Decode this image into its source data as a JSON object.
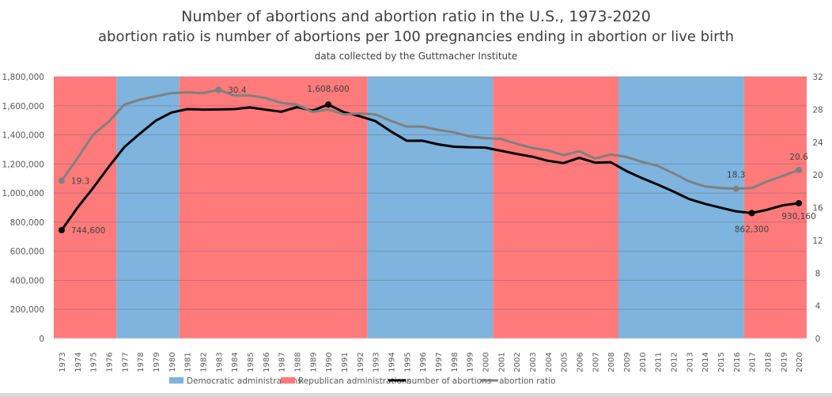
{
  "chart_data": {
    "type": "line",
    "title": "Number of abortions and abortion ratio in the U.S., 1973-2020",
    "subtitle": "abortion ratio is number of abortions per 100 pregnancies ending in abortion or live birth",
    "source_note": "data collected by the Guttmacher Institute",
    "x": [
      1973,
      1974,
      1975,
      1976,
      1977,
      1978,
      1979,
      1980,
      1981,
      1982,
      1983,
      1984,
      1985,
      1986,
      1987,
      1988,
      1989,
      1990,
      1991,
      1992,
      1993,
      1994,
      1995,
      1996,
      1997,
      1998,
      1999,
      2000,
      2001,
      2002,
      2003,
      2004,
      2005,
      2006,
      2007,
      2008,
      2009,
      2010,
      2011,
      2012,
      2013,
      2014,
      2015,
      2016,
      2017,
      2018,
      2019,
      2020
    ],
    "y_left": {
      "range": [
        0,
        1800000
      ],
      "ticks": [
        "0",
        "200,000",
        "400,000",
        "600,000",
        "800,000",
        "1,000,000",
        "1,200,000",
        "1,400,000",
        "1,600,000",
        "1,800,000"
      ]
    },
    "y_right": {
      "range": [
        0,
        32
      ],
      "ticks": [
        "0",
        "4",
        "8",
        "12",
        "16",
        "20",
        "24",
        "28",
        "32"
      ]
    },
    "grid": true,
    "legend_position": "bottom",
    "series": [
      {
        "name": "number of abortions",
        "axis": "left",
        "color": "#000000",
        "values": [
          744600,
          898600,
          1034200,
          1179300,
          1316700,
          1409600,
          1497700,
          1553900,
          1577300,
          1573900,
          1575000,
          1577200,
          1588600,
          1574000,
          1559100,
          1590800,
          1566900,
          1608600,
          1556500,
          1528900,
          1495000,
          1423000,
          1359400,
          1360200,
          1335000,
          1319000,
          1314800,
          1312990,
          1291000,
          1269000,
          1250000,
          1222100,
          1206200,
          1242200,
          1209600,
          1212400,
          1151600,
          1102700,
          1058500,
          1011000,
          958700,
          926200,
          899500,
          874100,
          862300,
          885800,
          916460,
          930160
        ],
        "labels": [
          {
            "year": 1973,
            "text": "744,600"
          },
          {
            "year": 1990,
            "text": "1,608,600"
          },
          {
            "year": 2017,
            "text": "862,300"
          },
          {
            "year": 2020,
            "text": "930,160"
          }
        ]
      },
      {
        "name": "abortion ratio",
        "axis": "right",
        "color": "#808080",
        "values": [
          19.3,
          22.0,
          24.9,
          26.5,
          28.6,
          29.2,
          29.6,
          30.0,
          30.1,
          30.0,
          30.4,
          29.7,
          29.7,
          29.4,
          28.8,
          28.6,
          27.7,
          28.0,
          27.4,
          27.5,
          27.4,
          26.6,
          25.9,
          25.9,
          25.5,
          25.2,
          24.7,
          24.5,
          24.4,
          23.8,
          23.3,
          23.0,
          22.4,
          22.9,
          22.0,
          22.5,
          22.2,
          21.6,
          21.1,
          20.2,
          19.2,
          18.6,
          18.4,
          18.3,
          18.4,
          19.2,
          19.9,
          20.6
        ],
        "labels": [
          {
            "year": 1973,
            "text": "19.3"
          },
          {
            "year": 1983,
            "text": "30.4"
          },
          {
            "year": 2016,
            "text": "18.3"
          },
          {
            "year": 2020,
            "text": "20.6"
          }
        ]
      }
    ],
    "administrations": [
      {
        "party": "Republican",
        "from": 1973,
        "to": 1976
      },
      {
        "party": "Democratic",
        "from": 1977,
        "to": 1980
      },
      {
        "party": "Republican",
        "from": 1981,
        "to": 1992
      },
      {
        "party": "Democratic",
        "from": 1993,
        "to": 2000
      },
      {
        "party": "Republican",
        "from": 2001,
        "to": 2008
      },
      {
        "party": "Democratic",
        "from": 2009,
        "to": 2016
      },
      {
        "party": "Republican",
        "from": 2017,
        "to": 2020
      }
    ],
    "colors": {
      "Democratic": "#7eb4de",
      "Republican": "#ff7b7b"
    },
    "legend": [
      "Democratic administrations",
      "Republican administrations",
      "number of abortions",
      "abortion ratio"
    ]
  }
}
